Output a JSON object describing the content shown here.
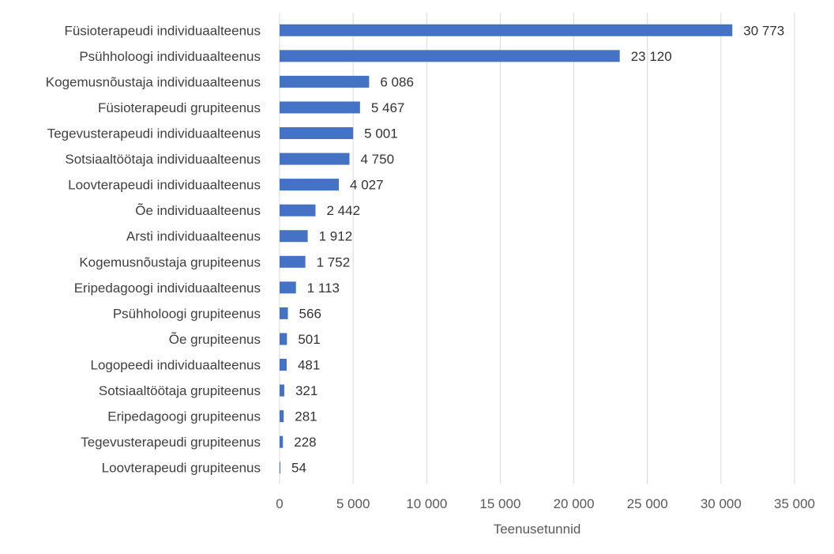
{
  "chart_data": {
    "type": "bar",
    "orientation": "horizontal",
    "title": "",
    "xlabel": "Teenusetunnid",
    "ylabel": "",
    "xlim": [
      0,
      35000
    ],
    "grid": true,
    "legend": "none",
    "bar_color": "#4472c4",
    "categories": [
      "Füsioterapeudi individuaalteenus",
      "Psühholoogi individuaalteenus",
      "Kogemusnõustaja individuaalteenus",
      "Füsioterapeudi grupiteenus",
      "Tegevusterapeudi individuaalteenus",
      "Sotsiaaltöötaja individuaalteenus",
      "Loovterapeudi individuaalteenus",
      "Õe individuaalteenus",
      "Arsti individuaalteenus",
      "Kogemusnõustaja grupiteenus",
      "Eripedagoogi individuaalteenus",
      "Psühholoogi grupiteenus",
      "Õe grupiteenus",
      "Logopeedi individuaalteenus",
      "Sotsiaaltöötaja grupiteenus",
      "Eripedagoogi grupiteenus",
      "Tegevusterapeudi grupiteenus",
      "Loovterapeudi grupiteenus"
    ],
    "values": [
      30773,
      23120,
      6086,
      5467,
      5001,
      4750,
      4027,
      2442,
      1912,
      1752,
      1113,
      566,
      501,
      481,
      321,
      281,
      228,
      54
    ],
    "value_labels": [
      "30 773",
      "23 120",
      "6 086",
      "5 467",
      "5 001",
      "4 750",
      "4 027",
      "2 442",
      "1 912",
      "1 752",
      "1 113",
      "566",
      "501",
      "481",
      "321",
      "281",
      "228",
      "54"
    ],
    "ticks": [
      0,
      5000,
      10000,
      15000,
      20000,
      25000,
      30000,
      35000
    ],
    "tick_labels": [
      "0",
      "5 000",
      "10 000",
      "15 000",
      "20 000",
      "25 000",
      "30 000",
      "35 000"
    ]
  }
}
